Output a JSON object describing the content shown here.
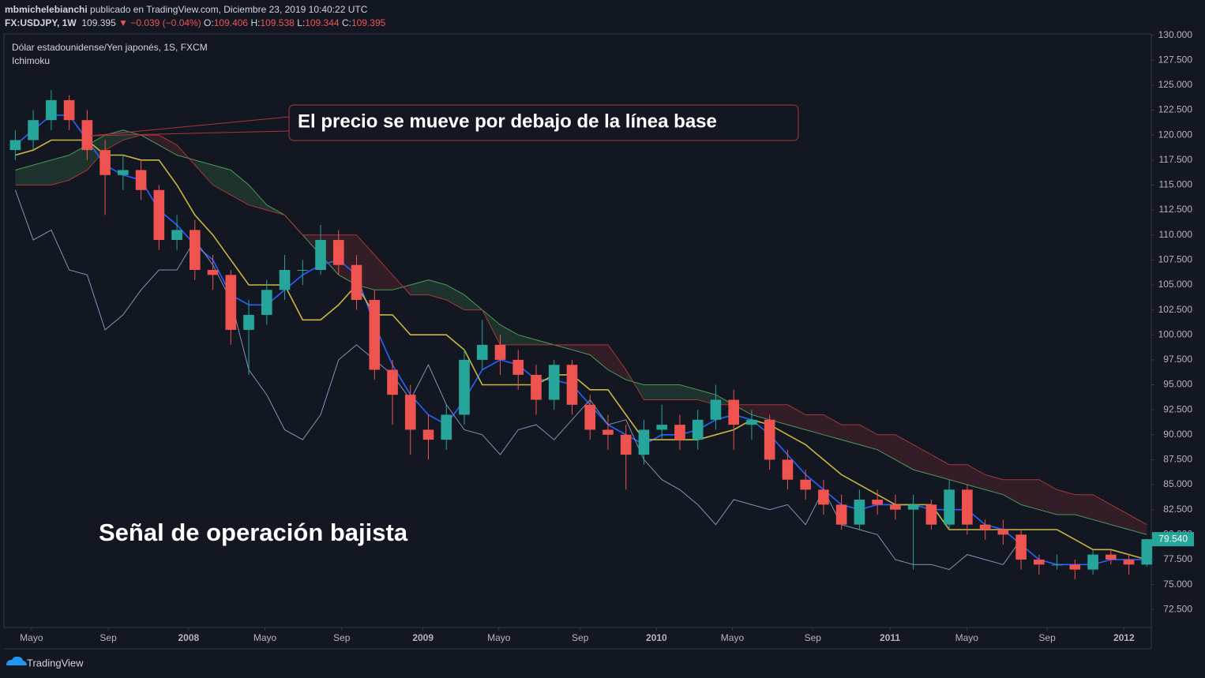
{
  "header": {
    "author": "mbmichelebianchi",
    "published": "publicado en TradingView.com, Diciembre 23, 2019 10:40:22 UTC",
    "symbol": "FX:USDJPY, 1W",
    "price": "109.395",
    "change": "▼ −0.039 (−0.04%)",
    "ohlc": [
      {
        "key": "O:",
        "value": "109.406"
      },
      {
        "key": "H:",
        "value": "109.538"
      },
      {
        "key": "L:",
        "value": "109.344"
      },
      {
        "key": "C:",
        "value": "109.395"
      }
    ]
  },
  "footer": {
    "brand": "TradingView"
  },
  "chart_data": {
    "type": "candlestick",
    "pane_title": "Dólar estadounidense/Yen japonés, 1S, FXCM",
    "indicator": "Ichimoku",
    "annotations": [
      "El precio se mueve por debajo de la línea base",
      "Señal de operación bajista"
    ],
    "up_color": "#26a69a",
    "down_color": "#ef5350",
    "x": [
      2,
      6,
      10,
      14,
      18,
      22,
      26,
      30,
      34,
      38,
      42,
      46,
      50,
      54,
      58,
      62,
      66,
      70,
      74,
      78,
      82,
      86,
      90,
      94,
      98,
      102,
      106,
      110,
      114,
      118,
      122,
      126,
      130,
      134,
      138,
      142,
      146,
      150,
      154,
      158,
      162,
      166,
      170,
      174,
      178,
      182,
      186,
      190,
      194,
      198,
      202,
      206,
      210,
      214,
      218,
      222,
      226,
      230,
      234,
      238,
      242,
      246,
      250,
      254
    ],
    "open": [
      118.5,
      119.5,
      121.5,
      123.5,
      121.5,
      118.5,
      116,
      116.5,
      114.5,
      109.5,
      110.5,
      106.5,
      106,
      100.5,
      102,
      104.5,
      106.5,
      106.5,
      109.5,
      107,
      103.5,
      96.5,
      94,
      90.5,
      89.5,
      92,
      97.5,
      99,
      97.5,
      96,
      93.5,
      97,
      93,
      90.5,
      90,
      88,
      90.5,
      91,
      89.5,
      91.5,
      93.5,
      91,
      91.5,
      87.5,
      85.5,
      84.5,
      83,
      81,
      83.5,
      83,
      82.5,
      83,
      81,
      84.5,
      81,
      80.5,
      80,
      77.5,
      77,
      77,
      76.5,
      78,
      77.5,
      77
    ],
    "high": [
      120.5,
      122.5,
      124.5,
      124,
      122.5,
      119.5,
      118,
      117.5,
      115,
      112,
      111.5,
      108,
      106.5,
      103.5,
      105.5,
      108,
      107.5,
      111,
      110.5,
      108,
      104.5,
      97.5,
      95,
      92,
      93,
      98.5,
      101.5,
      100,
      98.5,
      97,
      97.5,
      97.5,
      94,
      92,
      91,
      91.5,
      93,
      92,
      92.5,
      95,
      94.5,
      92.5,
      92,
      88.5,
      86.5,
      85.5,
      84,
      84.5,
      84.5,
      84,
      84,
      83.5,
      85.5,
      85,
      81.5,
      81.5,
      80.5,
      78,
      78,
      77.5,
      78.5,
      78.5,
      78,
      79.6
    ],
    "low": [
      117.5,
      118.5,
      120.5,
      120.5,
      117.5,
      112,
      114.5,
      113.5,
      108.5,
      108.5,
      105.5,
      104.5,
      99,
      96,
      101,
      103.5,
      105,
      106,
      106,
      102.5,
      95.5,
      91,
      88,
      87.5,
      88.5,
      91,
      96.5,
      96,
      94.5,
      92,
      92.5,
      92,
      89.5,
      88.5,
      84.5,
      87,
      89.5,
      88.5,
      88.5,
      90.5,
      88.5,
      89.5,
      86.5,
      84.5,
      83.5,
      82,
      80.5,
      80.5,
      82,
      81.5,
      76.5,
      80.5,
      80.5,
      80,
      79.5,
      79,
      76.5,
      76,
      76.5,
      75.5,
      76,
      77,
      76,
      76.8
    ],
    "close": [
      119.5,
      121.5,
      123.5,
      121.5,
      118.5,
      116,
      116.5,
      114.5,
      109.5,
      110.5,
      106.5,
      106,
      100.5,
      102,
      104.5,
      106.5,
      106.5,
      109.5,
      107,
      103.5,
      96.5,
      94,
      90.5,
      89.5,
      92,
      97.5,
      99,
      97.5,
      96,
      93.5,
      97,
      93,
      90.5,
      90,
      88,
      90.5,
      91,
      89.5,
      91.5,
      93.5,
      91,
      91.5,
      87.5,
      85.5,
      84.5,
      83,
      81,
      83.5,
      83,
      82.5,
      83,
      81,
      84.5,
      81,
      80.5,
      80,
      77.5,
      77,
      77,
      76.5,
      78,
      77.5,
      77,
      79.54
    ],
    "lines": [
      {
        "color": "#2962ff",
        "values": [
          119,
          120.5,
          122,
          122,
          119.5,
          117,
          116,
          115.5,
          112.5,
          111,
          109,
          107.5,
          104,
          103,
          103,
          104.5,
          106,
          107,
          107.5,
          106,
          101,
          97,
          94,
          92,
          91,
          93.5,
          96.5,
          97.5,
          97,
          95.5,
          95.5,
          95,
          93,
          91,
          90,
          89,
          90,
          90,
          90.5,
          91.5,
          92,
          91.5,
          90,
          88,
          86,
          84.5,
          83,
          82.5,
          83,
          83,
          83,
          82.5,
          82.5,
          82.5,
          81,
          80.5,
          79,
          77.5,
          77,
          77,
          77,
          77.5,
          77.5,
          77.5
        ]
      },
      {
        "color": "#c9b642",
        "values": [
          118,
          118.5,
          119.5,
          119.5,
          119.5,
          118,
          118,
          117.5,
          117.5,
          115,
          112,
          110,
          107.5,
          105,
          105,
          105,
          101.5,
          101.5,
          103,
          105,
          102,
          102,
          100,
          100,
          100,
          98.5,
          95,
          95,
          95,
          95,
          96,
          96,
          94.5,
          94.5,
          92,
          89.5,
          89.5,
          89.5,
          89.5,
          90,
          90.5,
          91.5,
          91,
          90,
          89,
          87.5,
          86,
          85,
          84,
          83,
          83,
          83,
          80.5,
          80.5,
          80.5,
          80.5,
          80.5,
          80.5,
          80.5,
          79.5,
          78.5,
          78.5,
          78,
          77.5
        ]
      },
      {
        "color": "#7f95b8",
        "values": [
          114.5,
          109.5,
          110.5,
          106.5,
          106,
          100.5,
          102,
          104.5,
          106.5,
          106.5,
          109.5,
          107,
          103.5,
          96.5,
          94,
          90.5,
          89.5,
          92,
          97.5,
          99,
          97.5,
          96,
          93.5,
          97,
          93,
          90.5,
          90,
          88,
          90.5,
          91,
          89.5,
          91.5,
          93.5,
          91,
          91.5,
          87.5,
          85.5,
          84.5,
          83,
          81,
          83.5,
          83,
          82.5,
          83,
          81,
          84.5,
          81,
          80.5,
          80,
          77.5,
          77,
          77,
          76.5,
          78,
          77.5,
          77,
          79.54,
          null,
          null,
          null,
          null,
          null,
          null,
          null
        ]
      }
    ],
    "span_a": {
      "color": "#4c9a5a",
      "values": [
        116.5,
        117,
        117.5,
        118,
        119,
        120,
        120.5,
        120,
        119,
        118,
        117.5,
        117,
        116.5,
        115,
        113,
        112,
        110,
        108,
        106,
        105,
        104.5,
        104.5,
        105,
        105.5,
        105,
        104,
        102.5,
        101,
        100,
        99.5,
        99,
        98.5,
        98,
        96.5,
        95.5,
        95,
        95,
        95,
        94.5,
        94,
        93,
        92,
        91.5,
        91,
        90.5,
        90,
        89.5,
        89,
        88.5,
        87.5,
        86.5,
        86,
        85.5,
        85,
        84.5,
        84,
        83,
        82.5,
        82,
        82,
        81.5,
        81,
        80.5,
        80
      ]
    },
    "span_b": {
      "color": "#a8373a",
      "values": [
        115,
        115,
        115,
        115.5,
        116.5,
        118.5,
        119.5,
        120,
        120,
        119,
        117,
        115,
        114,
        113,
        112.5,
        112,
        110,
        110,
        110,
        110,
        108,
        106,
        104,
        104,
        103.5,
        102.5,
        102.5,
        99,
        99,
        99,
        99,
        99,
        99,
        99,
        96.5,
        93.5,
        93.5,
        93.5,
        93.5,
        93,
        93,
        93,
        93,
        93,
        92,
        92,
        91,
        91,
        90,
        90,
        89,
        88,
        87,
        87,
        86,
        85.5,
        85.5,
        85.5,
        84.5,
        84,
        84,
        83,
        82,
        81
      ]
    },
    "price_tag": {
      "value": 79.54,
      "label": "79.540"
    },
    "xlim": [
      0,
      255
    ],
    "xticks": [
      {
        "value": 5.6,
        "label": "Mayo"
      },
      {
        "value": 22.7,
        "label": "Sep"
      },
      {
        "value": 40.6,
        "label": "2008"
      },
      {
        "value": 57.6,
        "label": "Mayo"
      },
      {
        "value": 74.7,
        "label": "Sep"
      },
      {
        "value": 92.8,
        "label": "2009"
      },
      {
        "value": 109.7,
        "label": "Mayo"
      },
      {
        "value": 127.8,
        "label": "Sep"
      },
      {
        "value": 144.8,
        "label": "2010"
      },
      {
        "value": 161.7,
        "label": "Mayo"
      },
      {
        "value": 179.6,
        "label": "Sep"
      },
      {
        "value": 196.8,
        "label": "2011"
      },
      {
        "value": 213.9,
        "label": "Mayo"
      },
      {
        "value": 231.8,
        "label": "Sep"
      },
      {
        "value": 248.9,
        "label": "2012"
      }
    ],
    "ylim": [
      70.7,
      130.05
    ],
    "yticks": [
      {
        "value": 72.5,
        "label": "72.500"
      },
      {
        "value": 75,
        "label": "75.000"
      },
      {
        "value": 77.5,
        "label": "77.500"
      },
      {
        "value": 80,
        "label": "80.000"
      },
      {
        "value": 82.5,
        "label": "82.500"
      },
      {
        "value": 85,
        "label": "85.000"
      },
      {
        "value": 87.5,
        "label": "87.500"
      },
      {
        "value": 90,
        "label": "90.000"
      },
      {
        "value": 92.5,
        "label": "92.500"
      },
      {
        "value": 95,
        "label": "95.000"
      },
      {
        "value": 97.5,
        "label": "97.500"
      },
      {
        "value": 100,
        "label": "100.000"
      },
      {
        "value": 102.5,
        "label": "102.500"
      },
      {
        "value": 105,
        "label": "105.000"
      },
      {
        "value": 107.5,
        "label": "107.500"
      },
      {
        "value": 110,
        "label": "110.000"
      },
      {
        "value": 112.5,
        "label": "112.500"
      },
      {
        "value": 115,
        "label": "115.000"
      },
      {
        "value": 117.5,
        "label": "117.500"
      },
      {
        "value": 120,
        "label": "120.000"
      },
      {
        "value": 122.5,
        "label": "122.500"
      },
      {
        "value": 125,
        "label": "125.000"
      },
      {
        "value": 127.5,
        "label": "127.500"
      },
      {
        "value": 130,
        "label": "130.000"
      }
    ],
    "grid": false
  }
}
